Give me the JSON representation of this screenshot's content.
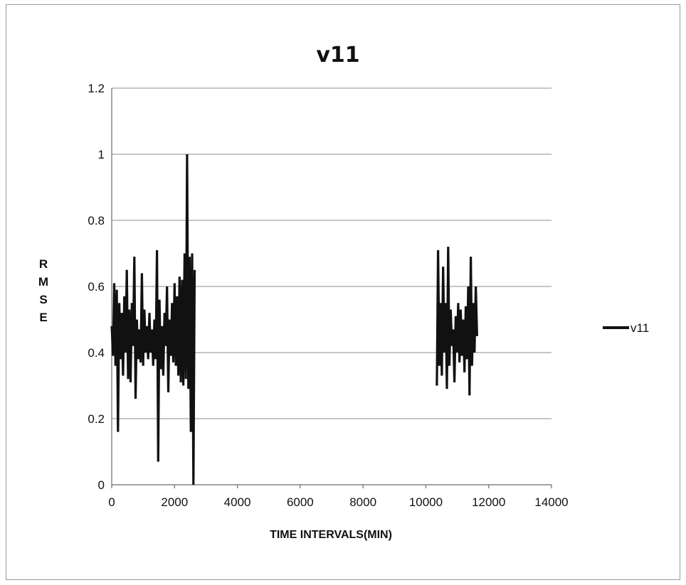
{
  "chart_data": {
    "type": "line",
    "title": "v11",
    "xlabel": "TIME INTERVALS(MIN)",
    "ylabel": "RMSE",
    "ylabel_letters": [
      "R",
      "M",
      "S",
      "E"
    ],
    "xlim": [
      0,
      14000
    ],
    "ylim": [
      0,
      1.2
    ],
    "xticks": [
      0,
      2000,
      4000,
      6000,
      8000,
      10000,
      12000,
      14000
    ],
    "yticks": [
      0,
      0.2,
      0.4,
      0.6,
      0.8,
      1,
      1.2
    ],
    "xtick_labels": [
      "0",
      "2000",
      "4000",
      "6000",
      "8000",
      "10000",
      "12000",
      "14000"
    ],
    "ytick_labels": [
      "0",
      "0.2",
      "0.4",
      "0.6",
      "0.8",
      "1",
      "1.2"
    ],
    "grid": "horizontal",
    "legend": "right",
    "series_color": "#111111",
    "series": [
      {
        "name": "v11",
        "segments": [
          {
            "x": [
              0,
              40,
              80,
              120,
              160,
              200,
              240,
              280,
              320,
              360,
              400,
              440,
              480,
              520,
              560,
              600,
              640,
              680,
              720,
              760,
              800,
              840,
              880,
              920,
              960,
              1000,
              1040,
              1080,
              1120,
              1160,
              1200,
              1240,
              1280,
              1320,
              1360,
              1400,
              1440,
              1480,
              1520,
              1560,
              1600,
              1640,
              1680,
              1720,
              1760,
              1800,
              1840,
              1880,
              1920,
              1960,
              2000,
              2040,
              2080,
              2120,
              2160,
              2200,
              2240,
              2280,
              2320,
              2360,
              2400,
              2440,
              2480,
              2520,
              2560,
              2600,
              2640
            ],
            "y": [
              0.48,
              0.39,
              0.61,
              0.36,
              0.59,
              0.16,
              0.55,
              0.38,
              0.52,
              0.33,
              0.57,
              0.4,
              0.65,
              0.32,
              0.53,
              0.31,
              0.55,
              0.42,
              0.69,
              0.26,
              0.5,
              0.38,
              0.47,
              0.37,
              0.64,
              0.36,
              0.53,
              0.4,
              0.48,
              0.38,
              0.52,
              0.4,
              0.47,
              0.36,
              0.5,
              0.38,
              0.71,
              0.07,
              0.56,
              0.35,
              0.48,
              0.33,
              0.52,
              0.42,
              0.6,
              0.28,
              0.5,
              0.39,
              0.55,
              0.37,
              0.61,
              0.36,
              0.57,
              0.33,
              0.63,
              0.31,
              0.62,
              0.3,
              0.7,
              0.32,
              1.0,
              0.29,
              0.69,
              0.16,
              0.7,
              0.0,
              0.65
            ]
          },
          {
            "x": [
              10350,
              10390,
              10430,
              10470,
              10510,
              10550,
              10590,
              10630,
              10670,
              10710,
              10750,
              10790,
              10830,
              10870,
              10910,
              10950,
              10990,
              11030,
              11070,
              11110,
              11150,
              11190,
              11230,
              11270,
              11310,
              11350,
              11390,
              11430,
              11470,
              11510,
              11550,
              11590,
              11630
            ],
            "y": [
              0.3,
              0.71,
              0.36,
              0.55,
              0.33,
              0.66,
              0.4,
              0.55,
              0.29,
              0.72,
              0.36,
              0.53,
              0.42,
              0.47,
              0.31,
              0.51,
              0.4,
              0.55,
              0.37,
              0.53,
              0.39,
              0.5,
              0.34,
              0.54,
              0.38,
              0.6,
              0.27,
              0.69,
              0.36,
              0.55,
              0.4,
              0.6,
              0.45
            ]
          }
        ]
      }
    ]
  }
}
